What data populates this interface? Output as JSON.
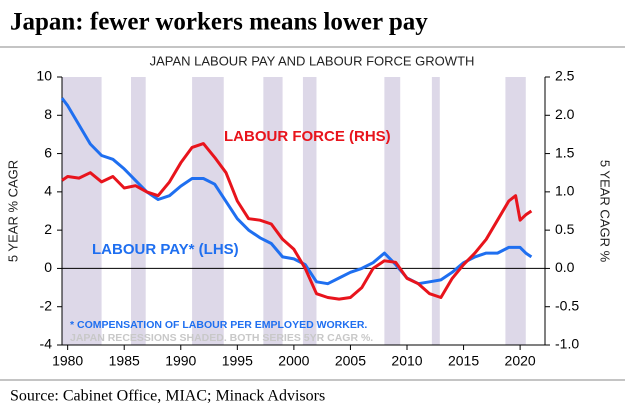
{
  "title": "Japan: fewer workers means lower pay",
  "source": "Source: Cabinet Office, MIAC; Minack Advisors",
  "chart_data": {
    "type": "line",
    "title": "JAPAN LABOUR PAY AND LABOUR FORCE GROWTH",
    "y_label": "5 YEAR % CAGR",
    "y2_label": "5 YEAR CAGR %",
    "annotations": [
      "LABOUR FORCE (RHS)",
      "LABOUR PAY* (LHS)",
      "* COMPENSATION OF LABOUR PER EMPLOYED WORKER.",
      "JAPAN RECESSIONS SHADED. BOTH SERIES 5YR CAGR %."
    ],
    "xlim": [
      1979.5,
      2022.2
    ],
    "xticks": [
      1980,
      1985,
      1990,
      1995,
      2000,
      2005,
      2010,
      2015,
      2020
    ],
    "ylim": [
      -4,
      10
    ],
    "yticks": [
      -4,
      -2,
      0,
      2,
      4,
      6,
      8,
      10
    ],
    "y2lim": [
      -1,
      2.5
    ],
    "y2ticks": [
      {
        "value": -1,
        "label": "-1.0"
      },
      -0.5,
      {
        "value": 0,
        "label": "0.0"
      },
      0.5,
      {
        "value": 1,
        "label": "1.0"
      },
      1.5,
      {
        "value": 2,
        "label": "2.0"
      },
      2.5
    ],
    "recessions": [
      [
        1979.5,
        1983
      ],
      [
        1985.6,
        1986.9
      ],
      [
        1991,
        1993.8
      ],
      [
        1997.3,
        1999
      ],
      [
        2000.8,
        2002
      ],
      [
        2008,
        2009.4
      ],
      [
        2012.2,
        2012.9
      ],
      [
        2018.7,
        2020.5
      ]
    ],
    "recession_color": "#ddd8e8",
    "x": [
      1979.5,
      1980,
      1981,
      1982,
      1983,
      1984,
      1985,
      1986,
      1987,
      1988,
      1989,
      1990,
      1991,
      1992,
      1993,
      1994,
      1995,
      1996,
      1997,
      1998,
      1999,
      2000,
      2001,
      2002,
      2003,
      2004,
      2005,
      2006,
      2007,
      2008,
      2009,
      2010,
      2011,
      2012,
      2013,
      2014,
      2015,
      2016,
      2017,
      2018,
      2019,
      2019.6,
      2020,
      2020.5,
      2021
    ],
    "series": [
      {
        "name": "LABOUR PAY",
        "color": "#1f6ff0",
        "axis": "y",
        "values": [
          8.9,
          8.5,
          7.5,
          6.5,
          5.9,
          5.7,
          5.2,
          4.6,
          4.0,
          3.6,
          3.8,
          4.3,
          4.7,
          4.7,
          4.4,
          3.5,
          2.6,
          2.0,
          1.6,
          1.3,
          0.6,
          0.5,
          0.2,
          -0.7,
          -0.8,
          -0.5,
          -0.2,
          0.0,
          0.3,
          0.8,
          0.2,
          -0.5,
          -0.8,
          -0.7,
          -0.6,
          -0.2,
          0.3,
          0.6,
          0.8,
          0.8,
          1.1,
          1.1,
          1.1,
          0.8,
          0.6
        ]
      },
      {
        "name": "LABOUR FORCE",
        "color": "#e8141c",
        "axis": "y2",
        "values": [
          1.15,
          1.2,
          1.18,
          1.25,
          1.13,
          1.2,
          1.05,
          1.08,
          1.0,
          0.95,
          1.13,
          1.38,
          1.58,
          1.63,
          1.45,
          1.25,
          0.88,
          0.65,
          0.63,
          0.58,
          0.38,
          0.25,
          0,
          -0.33,
          -0.38,
          -0.4,
          -0.38,
          -0.25,
          0,
          0.1,
          0.08,
          -0.13,
          -0.2,
          -0.33,
          -0.38,
          -0.13,
          0.05,
          0.2,
          0.38,
          0.63,
          0.88,
          0.95,
          0.63,
          0.7,
          0.75
        ]
      }
    ]
  }
}
